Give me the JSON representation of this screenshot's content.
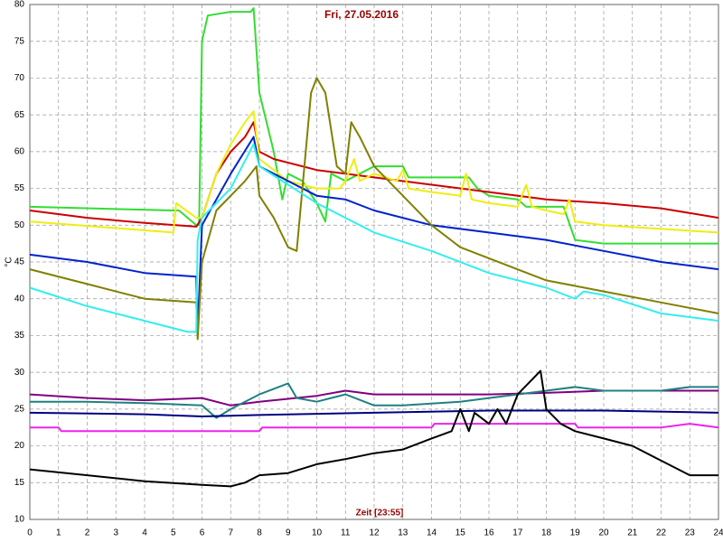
{
  "chart_data": {
    "type": "line",
    "title": "Fri, 27.05.2016",
    "xlabel": "Zeit [23:55]",
    "ylabel": "°C",
    "xlim": [
      0,
      24
    ],
    "xticks": [
      0,
      1,
      2,
      3,
      4,
      5,
      6,
      7,
      8,
      9,
      10,
      11,
      12,
      13,
      14,
      15,
      16,
      17,
      18,
      19,
      20,
      21,
      22,
      23,
      24
    ],
    "ylim": [
      10,
      80
    ],
    "yticks": [
      10,
      15,
      20,
      25,
      30,
      35,
      40,
      45,
      50,
      55,
      60,
      65,
      70,
      75,
      80
    ],
    "grid": true,
    "series": [
      {
        "color": "#33dd33",
        "x": [
          0,
          5,
          5.2,
          5.8,
          5.9,
          6,
          6.2,
          7,
          7.7,
          7.8,
          8,
          8.5,
          8.8,
          9,
          9.5,
          10,
          10.3,
          10.5,
          11,
          11.5,
          12,
          13,
          13.2,
          14,
          15,
          15.3,
          15.6,
          16,
          17,
          17.3,
          18,
          18.6,
          19,
          20,
          21,
          22,
          24
        ],
        "values": [
          52.5,
          52,
          52,
          50,
          50,
          75,
          78.5,
          79,
          79,
          79.5,
          68,
          60,
          53.5,
          57,
          56,
          53,
          50.5,
          57,
          56,
          57,
          58,
          58,
          56.5,
          56.5,
          56.5,
          56.5,
          55,
          54,
          53.5,
          52.5,
          52.5,
          52.5,
          48,
          47.5,
          47.5,
          47.5,
          47.5
        ]
      },
      {
        "color": "#cc0000",
        "x": [
          0,
          2,
          4,
          5.8,
          6,
          6.5,
          7,
          7.5,
          7.8,
          8,
          8.5,
          10,
          12,
          14,
          16,
          18,
          20,
          22,
          24
        ],
        "values": [
          52,
          51,
          50.3,
          49.8,
          51,
          57,
          60,
          62,
          64,
          60,
          59,
          57.5,
          56.5,
          55.5,
          54.5,
          53.5,
          53,
          52.3,
          51
        ]
      },
      {
        "color": "#eeee11",
        "x": [
          0,
          5,
          5.1,
          5.8,
          6,
          6.5,
          7,
          7.5,
          7.8,
          8,
          9,
          10,
          10.8,
          11,
          11.3,
          11.5,
          12,
          12.8,
          13,
          13.2,
          14,
          15,
          15.2,
          15.4,
          16,
          17,
          17.3,
          17.5,
          18,
          18.6,
          18.8,
          19,
          20,
          22,
          24
        ],
        "values": [
          50.5,
          49,
          53,
          51,
          51,
          57,
          61,
          64,
          65.5,
          59,
          56,
          55,
          55,
          56,
          59,
          56,
          57,
          56,
          57.5,
          55,
          54.5,
          54,
          57,
          53.5,
          53,
          52.5,
          55.5,
          52.5,
          52,
          51.5,
          53.5,
          50.5,
          50,
          49.5,
          49
        ]
      },
      {
        "color": "#0022cc",
        "x": [
          0,
          2,
          4,
          5.8,
          5.85,
          6,
          7,
          7.8,
          8,
          9,
          10,
          11,
          12,
          14,
          16,
          18,
          20,
          22,
          24
        ],
        "values": [
          46,
          45,
          43.5,
          43,
          35.5,
          50,
          57,
          62,
          58,
          56,
          54,
          53.5,
          52,
          50,
          49,
          48,
          46.5,
          45,
          44
        ]
      },
      {
        "color": "#808000",
        "x": [
          0,
          2,
          4,
          5.8,
          5.85,
          6,
          6.5,
          7,
          7.5,
          7.9,
          8,
          8.5,
          9,
          9.3,
          9.5,
          9.8,
          10,
          10.3,
          10.7,
          11,
          11.2,
          11.5,
          12,
          13,
          14,
          15,
          16,
          18,
          20,
          22,
          24
        ],
        "values": [
          44,
          42,
          40,
          39.5,
          34.5,
          45,
          52,
          54,
          56,
          58,
          54,
          51,
          47,
          46.5,
          55,
          68,
          70,
          68,
          58,
          57,
          64,
          62,
          58,
          54,
          50,
          47,
          45.5,
          42.5,
          41,
          39.5,
          38
        ]
      },
      {
        "color": "#33eeee",
        "x": [
          0,
          2,
          4,
          5.5,
          5.8,
          5.85,
          6,
          7,
          7.8,
          8,
          9,
          10,
          12,
          14,
          16,
          18,
          19,
          19.3,
          20,
          22,
          24
        ],
        "values": [
          41.5,
          39,
          37,
          35.5,
          35.5,
          48,
          51,
          55,
          61,
          58,
          55.5,
          53,
          49,
          46.5,
          43.5,
          41.5,
          40,
          41,
          40.5,
          38,
          37
        ]
      },
      {
        "color": "#800080",
        "x": [
          0,
          2,
          4,
          6,
          7,
          8,
          10,
          11,
          12,
          14,
          16,
          18,
          20,
          24
        ],
        "values": [
          27,
          26.5,
          26.2,
          26.5,
          25.5,
          26,
          26.8,
          27.5,
          27,
          27,
          27,
          27.2,
          27.5,
          27.5
        ]
      },
      {
        "color": "#208080",
        "x": [
          0,
          2,
          4,
          6,
          6.5,
          7,
          8,
          9,
          9.3,
          10,
          10.5,
          11,
          12,
          13,
          15,
          16,
          17,
          18,
          19,
          20,
          22,
          23,
          24
        ],
        "values": [
          26,
          26,
          25.8,
          25.5,
          23.8,
          25,
          27,
          28.5,
          26.5,
          26,
          26.5,
          27,
          25.5,
          25.5,
          26,
          26.5,
          27,
          27.5,
          28,
          27.5,
          27.5,
          28,
          28
        ]
      },
      {
        "color": "#000080",
        "x": [
          0,
          4,
          6,
          8,
          12,
          16,
          20,
          24
        ],
        "values": [
          24.5,
          24.3,
          24,
          24.2,
          24.5,
          24.8,
          24.8,
          24.5
        ]
      },
      {
        "color": "#ee22ee",
        "x": [
          0,
          1,
          1.1,
          8,
          8.1,
          14,
          14.1,
          19,
          19.1,
          22,
          23,
          24
        ],
        "values": [
          22.5,
          22.5,
          22,
          22,
          22.5,
          22.5,
          23,
          23,
          22.5,
          22.5,
          23,
          22.5
        ]
      },
      {
        "color": "#000000",
        "x": [
          0,
          2,
          4,
          6,
          7,
          7.5,
          8,
          9,
          10,
          11,
          12,
          13,
          14,
          14.7,
          15,
          15.3,
          15.5,
          16,
          16.3,
          16.6,
          17,
          17.5,
          17.8,
          18,
          18.5,
          19,
          20,
          21,
          22,
          23,
          24
        ],
        "values": [
          16.8,
          16,
          15.2,
          14.7,
          14.5,
          15,
          16,
          16.3,
          17.5,
          18.2,
          19,
          19.5,
          21,
          22,
          25,
          22,
          24.5,
          23,
          25,
          23,
          27,
          29,
          30.2,
          25,
          23,
          22,
          21,
          20,
          18,
          16,
          16
        ]
      }
    ]
  }
}
